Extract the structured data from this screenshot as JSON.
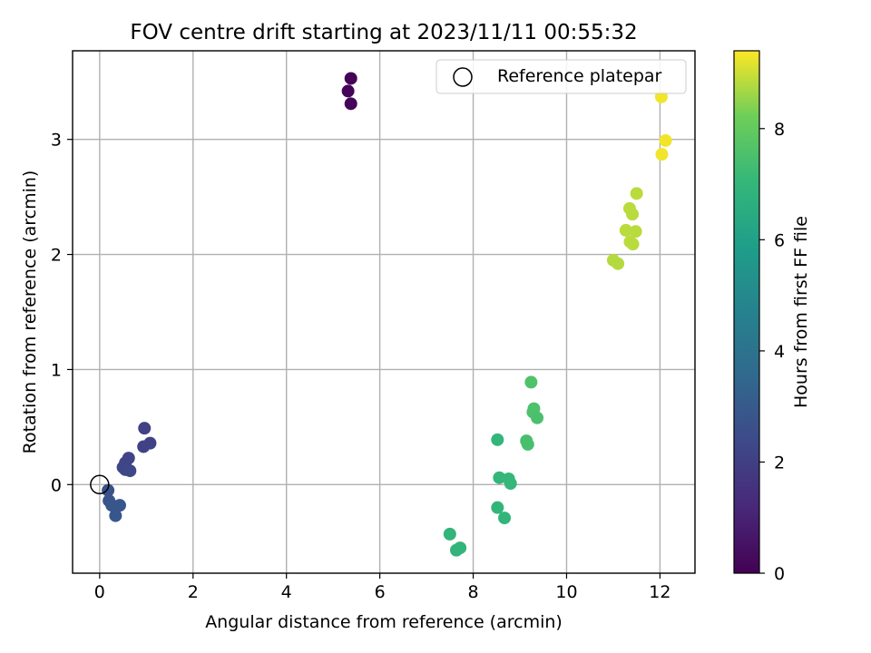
{
  "chart_data": {
    "type": "scatter",
    "title": "FOV centre drift starting at 2023/11/11 00:55:32",
    "xlabel": "Angular distance from reference (arcmin)",
    "ylabel": "Rotation from reference (arcmin)",
    "xlim": [
      -0.58,
      12.75
    ],
    "ylim": [
      -0.77,
      3.77
    ],
    "xticks": [
      0,
      2,
      4,
      6,
      8,
      10,
      12
    ],
    "yticks": [
      0,
      1,
      2,
      3
    ],
    "xtick_labels": [
      "0",
      "2",
      "4",
      "6",
      "8",
      "10",
      "12"
    ],
    "ytick_labels": [
      "0",
      "1",
      "2",
      "3"
    ],
    "grid": true,
    "legend": {
      "placement": "top-right",
      "entries": [
        "Reference platepar"
      ]
    },
    "reference_point": {
      "x": 0,
      "y": 0,
      "marker": "hollow-circle",
      "color": "#000000"
    },
    "colorbar": {
      "label": "Hours from first FF file",
      "colormap": "viridis",
      "range": [
        0,
        9.4
      ],
      "ticks": [
        0,
        2,
        4,
        6,
        8
      ],
      "tick_labels": [
        "0",
        "2",
        "4",
        "6",
        "8"
      ]
    },
    "points": [
      {
        "x": 5.38,
        "y": 3.53,
        "hours": 0.05
      },
      {
        "x": 5.32,
        "y": 3.42,
        "hours": 0.1
      },
      {
        "x": 5.38,
        "y": 3.31,
        "hours": 0.15
      },
      {
        "x": 0.96,
        "y": 0.49,
        "hours": 2.05
      },
      {
        "x": 1.08,
        "y": 0.36,
        "hours": 2.05
      },
      {
        "x": 0.94,
        "y": 0.33,
        "hours": 2.1
      },
      {
        "x": 0.62,
        "y": 0.23,
        "hours": 2.2
      },
      {
        "x": 0.55,
        "y": 0.19,
        "hours": 2.2
      },
      {
        "x": 0.5,
        "y": 0.15,
        "hours": 2.25
      },
      {
        "x": 0.55,
        "y": 0.13,
        "hours": 2.25
      },
      {
        "x": 0.65,
        "y": 0.12,
        "hours": 2.3
      },
      {
        "x": 0.18,
        "y": -0.05,
        "hours": 2.7
      },
      {
        "x": 0.2,
        "y": -0.14,
        "hours": 2.75
      },
      {
        "x": 0.26,
        "y": -0.18,
        "hours": 2.8
      },
      {
        "x": 0.43,
        "y": -0.18,
        "hours": 2.85
      },
      {
        "x": 0.34,
        "y": -0.27,
        "hours": 2.85
      },
      {
        "x": 8.52,
        "y": 0.39,
        "hours": 7.0
      },
      {
        "x": 8.56,
        "y": 0.06,
        "hours": 7.0
      },
      {
        "x": 8.76,
        "y": 0.05,
        "hours": 7.05
      },
      {
        "x": 8.8,
        "y": 0.01,
        "hours": 7.05
      },
      {
        "x": 8.52,
        "y": -0.2,
        "hours": 6.95
      },
      {
        "x": 8.67,
        "y": -0.29,
        "hours": 6.95
      },
      {
        "x": 7.5,
        "y": -0.43,
        "hours": 6.9
      },
      {
        "x": 7.72,
        "y": -0.55,
        "hours": 6.9
      },
      {
        "x": 7.64,
        "y": -0.57,
        "hours": 6.9
      },
      {
        "x": 9.24,
        "y": 0.89,
        "hours": 7.6
      },
      {
        "x": 9.3,
        "y": 0.66,
        "hours": 7.55
      },
      {
        "x": 9.28,
        "y": 0.63,
        "hours": 7.55
      },
      {
        "x": 9.37,
        "y": 0.58,
        "hours": 7.5
      },
      {
        "x": 9.14,
        "y": 0.38,
        "hours": 7.45
      },
      {
        "x": 9.17,
        "y": 0.35,
        "hours": 7.45
      },
      {
        "x": 11.5,
        "y": 2.53,
        "hours": 8.85
      },
      {
        "x": 11.35,
        "y": 2.4,
        "hours": 8.85
      },
      {
        "x": 11.41,
        "y": 2.35,
        "hours": 8.85
      },
      {
        "x": 11.27,
        "y": 2.21,
        "hours": 8.85
      },
      {
        "x": 11.48,
        "y": 2.2,
        "hours": 8.85
      },
      {
        "x": 11.36,
        "y": 2.11,
        "hours": 8.85
      },
      {
        "x": 11.42,
        "y": 2.09,
        "hours": 8.85
      },
      {
        "x": 11.0,
        "y": 1.95,
        "hours": 8.8
      },
      {
        "x": 11.1,
        "y": 1.92,
        "hours": 8.8
      },
      {
        "x": 12.03,
        "y": 3.37,
        "hours": 9.3
      },
      {
        "x": 12.12,
        "y": 2.99,
        "hours": 9.3
      },
      {
        "x": 12.04,
        "y": 2.87,
        "hours": 9.3
      }
    ]
  }
}
